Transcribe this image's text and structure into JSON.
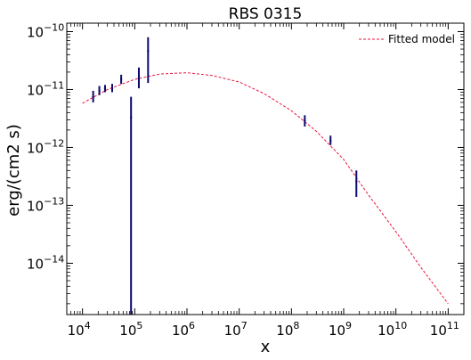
{
  "chart_data": {
    "type": "scatter",
    "title": "RBS 0315",
    "xlabel": "x",
    "ylabel": "erg/(cm2 s)",
    "xscale": "log",
    "yscale": "log",
    "xlim": [
      5000,
      200000000000
    ],
    "ylim": [
      1.3e-15,
      1.4e-10
    ],
    "x_ticks": [
      {
        "value": 10000,
        "base": "10",
        "exp": "4"
      },
      {
        "value": 100000,
        "base": "10",
        "exp": "5"
      },
      {
        "value": 1000000,
        "base": "10",
        "exp": "6"
      },
      {
        "value": 10000000,
        "base": "10",
        "exp": "7"
      },
      {
        "value": 100000000,
        "base": "10",
        "exp": "8"
      },
      {
        "value": 1000000000,
        "base": "10",
        "exp": "9"
      },
      {
        "value": 10000000000,
        "base": "10",
        "exp": "10"
      },
      {
        "value": 100000000000,
        "base": "10",
        "exp": "11"
      }
    ],
    "y_ticks": [
      {
        "value": 1e-14,
        "base": "10",
        "exp": "−14"
      },
      {
        "value": 1e-13,
        "base": "10",
        "exp": "−13"
      },
      {
        "value": 1e-12,
        "base": "10",
        "exp": "−12"
      },
      {
        "value": 1e-11,
        "base": "10",
        "exp": "−11"
      },
      {
        "value": 1e-10,
        "base": "10",
        "exp": "−10"
      }
    ],
    "grid": false,
    "legend_position": "top-right",
    "series": [
      {
        "name": "Fitted model",
        "kind": "line",
        "style": "dashed",
        "color": "#e8143c",
        "x": [
          10000,
          30000,
          100000,
          300000,
          1000000,
          3000000,
          10000000,
          30000000,
          100000000,
          300000000,
          1000000000,
          3000000000,
          10000000000,
          30000000000,
          100000000000
        ],
        "y": [
          5.8e-12,
          1e-11,
          1.5e-11,
          1.85e-11,
          1.95e-11,
          1.75e-11,
          1.35e-11,
          8.5e-12,
          4.3e-12,
          1.9e-12,
          6.2e-13,
          1.5e-13,
          3.5e-14,
          8.5e-15,
          2e-15
        ]
      },
      {
        "kind": "errorbar",
        "color": "#0a0a6e",
        "points": [
          {
            "x": 16000,
            "y": 7.5e-12,
            "ylo": 6e-12,
            "yhi": 9.5e-12
          },
          {
            "x": 21000,
            "y": 9.5e-12,
            "ylo": 8e-12,
            "yhi": 1.15e-11
          },
          {
            "x": 27000,
            "y": 1.05e-11,
            "ylo": 9e-12,
            "yhi": 1.2e-11
          },
          {
            "x": 37000,
            "y": 1.05e-11,
            "ylo": 9e-12,
            "yhi": 1.25e-11
          },
          {
            "x": 55000,
            "y": 1.5e-11,
            "ylo": 1.25e-11,
            "yhi": 1.8e-11
          },
          {
            "x": 85000,
            "y": 3.3e-12,
            "ylo": 1.3e-15,
            "yhi": 7.5e-12
          },
          {
            "x": 120000,
            "y": 1.6e-11,
            "ylo": 1.05e-11,
            "yhi": 2.4e-11
          },
          {
            "x": 180000,
            "y": 4.6e-11,
            "ylo": 1.3e-11,
            "yhi": 8e-11
          },
          {
            "x": 180000000,
            "y": 2.9e-12,
            "ylo": 2.3e-12,
            "yhi": 3.6e-12
          },
          {
            "x": 560000000,
            "y": 1.3e-12,
            "ylo": 1.1e-12,
            "yhi": 1.6e-12
          },
          {
            "x": 1750000000,
            "y": 2.6e-13,
            "ylo": 1.4e-13,
            "yhi": 4e-13
          }
        ]
      }
    ]
  }
}
